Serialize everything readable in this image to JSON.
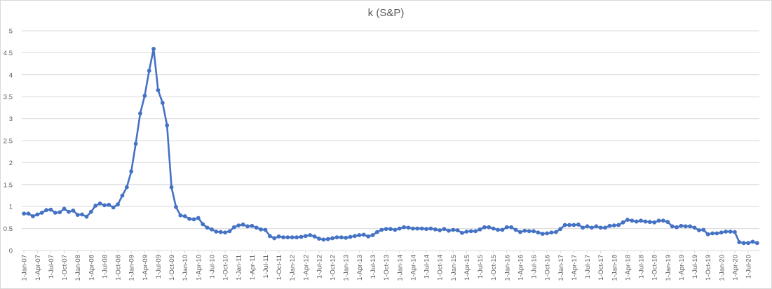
{
  "chart_data": {
    "type": "line",
    "title": "k (S&P)",
    "xlabel": "",
    "ylabel": "",
    "ylim": [
      0,
      5
    ],
    "yticks": [
      "0",
      "0.5",
      "1",
      "1.5",
      "2",
      "2.5",
      "3",
      "3.5",
      "4",
      "4.5",
      "5"
    ],
    "grid": true,
    "legend": "none",
    "line_color": "#4472c4",
    "gridline_color": "#d9d9d9",
    "x_tick_labels": [
      "1-Jan-07",
      "1-Apr-07",
      "1-Jul-07",
      "1-Oct-07",
      "1-Jan-08",
      "1-Apr-08",
      "1-Jul-08",
      "1-Oct-08",
      "1-Jan-09",
      "1-Apr-09",
      "1-Jul-09",
      "1-Oct-09",
      "1-Jan-10",
      "1-Apr-10",
      "1-Jul-10",
      "1-Oct-10",
      "1-Jan-11",
      "1-Apr-11",
      "1-Jul-11",
      "1-Oct-11",
      "1-Jan-12",
      "1-Apr-12",
      "1-Jul-12",
      "1-Oct-12",
      "1-Jan-13",
      "1-Apr-13",
      "1-Jul-13",
      "1-Oct-13",
      "1-Jan-14",
      "1-Apr-14",
      "1-Jul-14",
      "1-Oct-14",
      "1-Jan-15",
      "1-Apr-15",
      "1-Jul-15",
      "1-Oct-15",
      "1-Jan-16",
      "1-Apr-16",
      "1-Jul-16",
      "1-Oct-16",
      "1-Jan-17",
      "1-Apr-17",
      "1-Jul-17",
      "1-Oct-17",
      "1-Jan-18",
      "1-Apr-18",
      "1-Jul-18",
      "1-Oct-18",
      "1-Jan-19",
      "1-Apr-19",
      "1-Jul-19",
      "1-Oct-19",
      "1-Jan-20",
      "1-Apr-20",
      "1-Jul-20"
    ],
    "x_start": "1-Jan-07",
    "x_step": "1 month",
    "series": [
      {
        "values": [
          0.84,
          0.84,
          0.78,
          0.82,
          0.86,
          0.92,
          0.93,
          0.86,
          0.87,
          0.95,
          0.88,
          0.91,
          0.81,
          0.82,
          0.77,
          0.88,
          1.02,
          1.07,
          1.03,
          1.04,
          0.98,
          1.05,
          1.25,
          1.44,
          1.8,
          2.43,
          3.12,
          3.52,
          4.09,
          4.59,
          3.65,
          3.36,
          2.85,
          1.44,
          0.99,
          0.8,
          0.78,
          0.72,
          0.71,
          0.74,
          0.6,
          0.52,
          0.48,
          0.43,
          0.42,
          0.41,
          0.44,
          0.53,
          0.57,
          0.59,
          0.55,
          0.56,
          0.52,
          0.48,
          0.47,
          0.33,
          0.28,
          0.32,
          0.3,
          0.3,
          0.3,
          0.3,
          0.31,
          0.33,
          0.35,
          0.32,
          0.27,
          0.25,
          0.26,
          0.28,
          0.3,
          0.3,
          0.29,
          0.31,
          0.33,
          0.35,
          0.36,
          0.32,
          0.35,
          0.42,
          0.47,
          0.49,
          0.49,
          0.47,
          0.5,
          0.53,
          0.52,
          0.5,
          0.5,
          0.5,
          0.49,
          0.5,
          0.48,
          0.46,
          0.49,
          0.45,
          0.47,
          0.46,
          0.4,
          0.43,
          0.44,
          0.44,
          0.48,
          0.53,
          0.53,
          0.5,
          0.47,
          0.47,
          0.53,
          0.53,
          0.47,
          0.42,
          0.45,
          0.44,
          0.44,
          0.41,
          0.38,
          0.39,
          0.41,
          0.42,
          0.49,
          0.58,
          0.58,
          0.58,
          0.59,
          0.52,
          0.55,
          0.52,
          0.55,
          0.52,
          0.52,
          0.56,
          0.57,
          0.58,
          0.64,
          0.7,
          0.68,
          0.66,
          0.68,
          0.66,
          0.65,
          0.64,
          0.68,
          0.68,
          0.65,
          0.55,
          0.53,
          0.56,
          0.55,
          0.55,
          0.52,
          0.46,
          0.47,
          0.37,
          0.39,
          0.39,
          0.41,
          0.43,
          0.43,
          0.42,
          0.19,
          0.17,
          0.17,
          0.2,
          0.17
        ]
      }
    ]
  }
}
